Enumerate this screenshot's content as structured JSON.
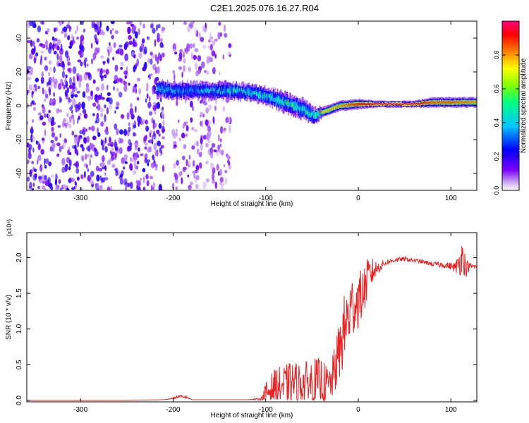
{
  "title": "C2E1.2025.076.16.27.R04",
  "chart_data": [
    {
      "type": "heatmap",
      "xlabel": "Height of straight line (km)",
      "ylabel": "Frequency (Hz)",
      "xlim": [
        -358,
        128
      ],
      "ylim": [
        -50,
        50
      ],
      "xticks": [
        -300,
        -200,
        -100,
        0,
        100
      ],
      "xtick_labels": [
        "-300",
        "-200",
        "-100",
        "0",
        "100"
      ],
      "yticks": [
        -40,
        -20,
        0,
        20,
        40
      ],
      "ytick_labels": [
        "-40",
        "-20",
        "0",
        "20",
        "40"
      ],
      "colorbar": {
        "label": "Normalized spectral amplitude",
        "range": [
          0,
          1
        ],
        "ticks": [
          0.0,
          0.2,
          0.4,
          0.6,
          0.8
        ],
        "tick_labels": [
          "0.0",
          "0.2",
          "0.4",
          "0.6",
          "0.8"
        ],
        "colors": [
          "#ffffff",
          "#d6b8f5",
          "#7b00ff",
          "#0000ff",
          "#00c8ff",
          "#00ff80",
          "#80ff00",
          "#ffff00",
          "#ff8000",
          "#ff0000",
          "#ff0080"
        ]
      },
      "noise_regions": [
        {
          "x": [
            -358,
            -210
          ],
          "y": [
            -50,
            50
          ],
          "amplitude": 0.15
        },
        {
          "x": [
            -200,
            -138
          ],
          "y": [
            -50,
            50
          ],
          "amplitude": 0.1
        }
      ],
      "signal_band": {
        "x": [
          -218,
          -200,
          -180,
          -160,
          -140,
          -120,
          -100,
          -80,
          -60,
          -48,
          -40,
          -20,
          0,
          20,
          40,
          60,
          80,
          100,
          128
        ],
        "center": [
          10,
          9,
          9,
          9,
          9,
          8,
          6,
          2,
          -2,
          -6,
          -4,
          0,
          1,
          1,
          1,
          1,
          2,
          2,
          2
        ],
        "halfwidth": [
          5,
          5,
          5,
          5,
          5,
          5,
          5,
          6,
          6,
          5,
          3,
          3,
          3,
          2,
          2,
          2,
          3,
          3,
          3
        ],
        "amplitude": [
          0.35,
          0.35,
          0.35,
          0.35,
          0.4,
          0.4,
          0.45,
          0.45,
          0.45,
          0.5,
          0.75,
          0.8,
          0.9,
          0.95,
          0.95,
          0.95,
          0.85,
          0.85,
          0.8
        ]
      }
    },
    {
      "type": "line",
      "xlabel": "Height of straight line (km)",
      "ylabel": "SNR (10 * v/v)",
      "y_multiplier": "(x10⁴)",
      "xlim": [
        -358,
        128
      ],
      "ylim": [
        -0.02,
        2.35
      ],
      "xticks": [
        -300,
        -200,
        -100,
        0,
        100
      ],
      "xtick_labels": [
        "-300",
        "-200",
        "-100",
        "0",
        "100"
      ],
      "yticks": [
        0.0,
        0.5,
        1.0,
        1.5,
        2.0
      ],
      "ytick_labels": [
        "0.0",
        "0.5",
        "1.0",
        "1.5",
        "2.0"
      ],
      "series": [
        {
          "color": "#ee2222",
          "x": [
            -358,
            -300,
            -250,
            -210,
            -200,
            -192,
            -185,
            -180,
            -150,
            -120,
            -105,
            -100,
            -90,
            -80,
            -70,
            -60,
            -50,
            -40,
            -32,
            -28,
            -20,
            -15,
            -10,
            -5,
            0,
            5,
            10,
            15,
            20,
            30,
            40,
            50,
            60,
            70,
            80,
            90,
            100,
            105,
            110,
            113,
            116,
            120,
            128
          ],
          "y": [
            0.0,
            0.0,
            0.0,
            0.01,
            0.03,
            0.06,
            0.04,
            0.01,
            0.01,
            0.01,
            0.02,
            0.1,
            0.2,
            0.2,
            0.25,
            0.22,
            0.25,
            0.25,
            0.2,
            0.3,
            0.7,
            1.0,
            1.2,
            1.35,
            1.4,
            1.5,
            1.7,
            1.8,
            1.85,
            1.93,
            1.97,
            1.98,
            1.96,
            1.94,
            1.91,
            1.9,
            1.88,
            1.86,
            1.95,
            2.05,
            1.85,
            1.88,
            1.87
          ],
          "noise_amplitude": [
            0.0,
            0.0,
            0.0,
            0.0,
            0.01,
            0.02,
            0.02,
            0.0,
            0.0,
            0.0,
            0.02,
            0.15,
            0.25,
            0.3,
            0.3,
            0.3,
            0.35,
            0.35,
            0.25,
            0.3,
            0.45,
            0.5,
            0.5,
            0.45,
            0.4,
            0.35,
            0.3,
            0.2,
            0.1,
            0.04,
            0.03,
            0.03,
            0.03,
            0.03,
            0.03,
            0.04,
            0.05,
            0.08,
            0.2,
            0.25,
            0.15,
            0.05,
            0.03
          ]
        }
      ]
    }
  ]
}
